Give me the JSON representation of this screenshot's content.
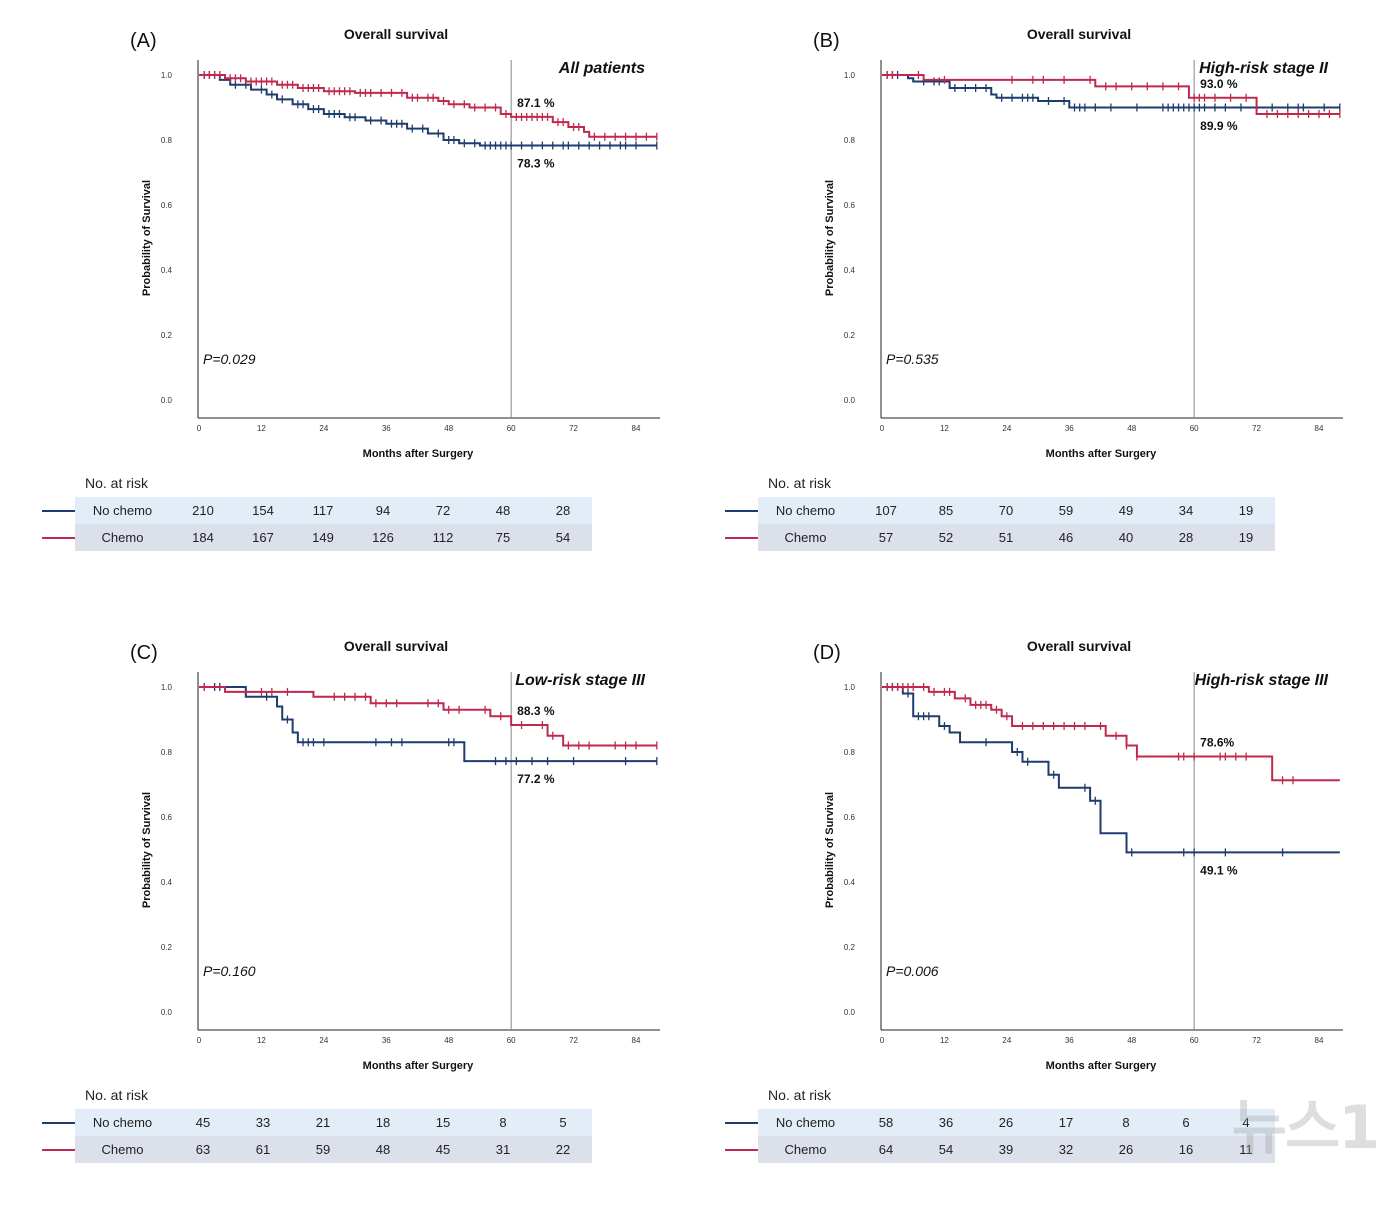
{
  "colors": {
    "no_chemo": "#1f3c6e",
    "chemo": "#c0284e",
    "ref_line": "#888888"
  },
  "chart_data": [
    {
      "type": "line",
      "panel_label": "(A)",
      "title": "Overall survival",
      "subtitle": "All patients",
      "xlabel": "Months after Surgery",
      "ylabel": "Probability of Survival",
      "xlim": [
        0,
        88
      ],
      "ylim": [
        0,
        1.0
      ],
      "xticks": [
        "0",
        "12",
        "24",
        "36",
        "48",
        "60",
        "72",
        "84"
      ],
      "yticks": [
        "0.0",
        "0.2",
        "0.4",
        "0.6",
        "0.8",
        "1.0"
      ],
      "ref_line_x": 60,
      "p_value": "P=0.029",
      "annotations": [
        {
          "text": "87.1 %",
          "x": 60,
          "y": 0.871,
          "pos": "above"
        },
        {
          "text": "78.3 %",
          "x": 60,
          "y": 0.783,
          "pos": "below"
        }
      ],
      "series": [
        {
          "name": "No chemo",
          "steps": [
            [
              0,
              1.0
            ],
            [
              4,
              0.985
            ],
            [
              6,
              0.97
            ],
            [
              10,
              0.955
            ],
            [
              13,
              0.94
            ],
            [
              15,
              0.925
            ],
            [
              18,
              0.91
            ],
            [
              21,
              0.895
            ],
            [
              24,
              0.88
            ],
            [
              28,
              0.87
            ],
            [
              32,
              0.86
            ],
            [
              36,
              0.85
            ],
            [
              40,
              0.835
            ],
            [
              44,
              0.82
            ],
            [
              47,
              0.8
            ],
            [
              50,
              0.79
            ],
            [
              54,
              0.783
            ],
            [
              88,
              0.783
            ]
          ],
          "censor": [
            1,
            2,
            3,
            7,
            9,
            12,
            14,
            16,
            19,
            20,
            22,
            23,
            25,
            26,
            27,
            29,
            30,
            33,
            35,
            37,
            38,
            39,
            41,
            43,
            46,
            48,
            49,
            51,
            53,
            55,
            56,
            57,
            58,
            59,
            60,
            62,
            64,
            66,
            68,
            70,
            71,
            73,
            75,
            77,
            79,
            81,
            82,
            84,
            88
          ]
        },
        {
          "name": "Chemo",
          "steps": [
            [
              0,
              1.0
            ],
            [
              5,
              0.99
            ],
            [
              9,
              0.98
            ],
            [
              15,
              0.97
            ],
            [
              19,
              0.96
            ],
            [
              24,
              0.95
            ],
            [
              30,
              0.945
            ],
            [
              40,
              0.93
            ],
            [
              46,
              0.92
            ],
            [
              48,
              0.91
            ],
            [
              52,
              0.9
            ],
            [
              58,
              0.88
            ],
            [
              60,
              0.871
            ],
            [
              68,
              0.855
            ],
            [
              71,
              0.84
            ],
            [
              74,
              0.825
            ],
            [
              75,
              0.81
            ],
            [
              88,
              0.81
            ]
          ],
          "censor": [
            1,
            2,
            3,
            4,
            6,
            7,
            8,
            10,
            11,
            12,
            13,
            14,
            16,
            17,
            18,
            20,
            21,
            22,
            23,
            25,
            26,
            27,
            28,
            29,
            31,
            32,
            33,
            35,
            37,
            39,
            41,
            42,
            44,
            45,
            47,
            49,
            51,
            53,
            55,
            57,
            59,
            61,
            62,
            63,
            64,
            65,
            66,
            67,
            69,
            70,
            72,
            73,
            76,
            78,
            80,
            82,
            84,
            86,
            88
          ]
        }
      ]
    },
    {
      "type": "line",
      "panel_label": "(B)",
      "title": "Overall survival",
      "subtitle": "High-risk stage II",
      "xlabel": "Months after Surgery",
      "ylabel": "Probability of Survival",
      "xlim": [
        0,
        88
      ],
      "ylim": [
        0,
        1.0
      ],
      "xticks": [
        "0",
        "12",
        "24",
        "36",
        "48",
        "60",
        "72",
        "84"
      ],
      "yticks": [
        "0.0",
        "0.2",
        "0.4",
        "0.6",
        "0.8",
        "1.0"
      ],
      "ref_line_x": 60,
      "p_value": "P=0.535",
      "annotations": [
        {
          "text": "93.0 %",
          "x": 60,
          "y": 0.93,
          "pos": "above"
        },
        {
          "text": "89.9 %",
          "x": 60,
          "y": 0.899,
          "pos": "below"
        }
      ],
      "series": [
        {
          "name": "No chemo",
          "steps": [
            [
              0,
              1.0
            ],
            [
              5,
              0.99
            ],
            [
              6,
              0.98
            ],
            [
              13,
              0.96
            ],
            [
              21,
              0.94
            ],
            [
              22,
              0.93
            ],
            [
              30,
              0.92
            ],
            [
              36,
              0.9
            ],
            [
              88,
              0.9
            ]
          ],
          "censor": [
            1,
            2,
            3,
            8,
            10,
            11,
            14,
            16,
            18,
            20,
            23,
            25,
            27,
            28,
            29,
            32,
            35,
            37,
            38,
            39,
            41,
            44,
            49,
            54,
            55,
            56,
            57,
            58,
            59,
            60,
            61,
            62,
            64,
            66,
            69,
            72,
            75,
            78,
            80,
            81,
            85,
            88
          ]
        },
        {
          "name": "Chemo",
          "steps": [
            [
              0,
              1.0
            ],
            [
              8,
              0.985
            ],
            [
              41,
              0.965
            ],
            [
              59,
              0.93
            ],
            [
              72,
              0.88
            ],
            [
              88,
              0.88
            ]
          ],
          "censor": [
            1,
            2,
            7,
            12,
            25,
            29,
            31,
            35,
            40,
            43,
            45,
            48,
            51,
            54,
            57,
            60,
            61,
            62,
            64,
            67,
            70,
            74,
            76,
            78,
            80,
            82,
            84,
            86,
            88
          ]
        }
      ]
    },
    {
      "type": "line",
      "panel_label": "(C)",
      "title": "Overall survival",
      "subtitle": "Low-risk stage III",
      "xlabel": "Months after Surgery",
      "ylabel": "Probability of Survival",
      "xlim": [
        0,
        88
      ],
      "ylim": [
        0,
        1.0
      ],
      "xticks": [
        "0",
        "12",
        "24",
        "36",
        "48",
        "60",
        "72",
        "84"
      ],
      "yticks": [
        "0.0",
        "0.2",
        "0.4",
        "0.6",
        "0.8",
        "1.0"
      ],
      "ref_line_x": 60,
      "p_value": "P=0.160",
      "annotations": [
        {
          "text": "88.3 %",
          "x": 60,
          "y": 0.883,
          "pos": "above"
        },
        {
          "text": "77.2 %",
          "x": 60,
          "y": 0.772,
          "pos": "below"
        }
      ],
      "series": [
        {
          "name": "No chemo",
          "steps": [
            [
              0,
              1.0
            ],
            [
              9,
              0.97
            ],
            [
              15,
              0.94
            ],
            [
              16,
              0.9
            ],
            [
              18,
              0.86
            ],
            [
              19,
              0.83
            ],
            [
              51,
              0.772
            ],
            [
              88,
              0.772
            ]
          ],
          "censor": [
            1,
            3,
            4,
            13,
            17,
            20,
            21,
            22,
            24,
            34,
            37,
            39,
            48,
            49,
            57,
            59,
            61,
            64,
            67,
            72,
            82,
            88
          ]
        },
        {
          "name": "Chemo",
          "steps": [
            [
              0,
              1.0
            ],
            [
              5,
              0.985
            ],
            [
              22,
              0.97
            ],
            [
              33,
              0.95
            ],
            [
              47,
              0.93
            ],
            [
              56,
              0.91
            ],
            [
              60,
              0.883
            ],
            [
              67,
              0.85
            ],
            [
              70,
              0.82
            ],
            [
              88,
              0.82
            ]
          ],
          "censor": [
            1,
            12,
            14,
            17,
            26,
            28,
            30,
            32,
            34,
            36,
            38,
            44,
            46,
            48,
            50,
            55,
            58,
            62,
            66,
            68,
            71,
            73,
            75,
            80,
            82,
            84,
            88
          ]
        }
      ]
    },
    {
      "type": "line",
      "panel_label": "(D)",
      "title": "Overall survival",
      "subtitle": "High-risk stage III",
      "xlabel": "Months after Surgery",
      "ylabel": "Probability of Survival",
      "xlim": [
        0,
        88
      ],
      "ylim": [
        0,
        1.0
      ],
      "xticks": [
        "0",
        "12",
        "24",
        "36",
        "48",
        "60",
        "72",
        "84"
      ],
      "yticks": [
        "0.0",
        "0.2",
        "0.4",
        "0.6",
        "0.8",
        "1.0"
      ],
      "ref_line_x": 60,
      "p_value": "P=0.006",
      "annotations": [
        {
          "text": "78.6%",
          "x": 60,
          "y": 0.786,
          "pos": "above"
        },
        {
          "text": "49.1 %",
          "x": 60,
          "y": 0.491,
          "pos": "below"
        }
      ],
      "series": [
        {
          "name": "No chemo",
          "steps": [
            [
              0,
              1.0
            ],
            [
              4,
              0.98
            ],
            [
              6,
              0.91
            ],
            [
              11,
              0.88
            ],
            [
              13,
              0.86
            ],
            [
              15,
              0.83
            ],
            [
              25,
              0.8
            ],
            [
              27,
              0.77
            ],
            [
              32,
              0.73
            ],
            [
              34,
              0.69
            ],
            [
              40,
              0.65
            ],
            [
              42,
              0.55
            ],
            [
              47,
              0.491
            ],
            [
              88,
              0.491
            ]
          ],
          "censor": [
            1,
            2,
            3,
            5,
            7,
            8,
            9,
            12,
            20,
            26,
            28,
            33,
            39,
            41,
            48,
            58,
            60,
            66,
            77
          ]
        },
        {
          "name": "Chemo",
          "steps": [
            [
              0,
              1.0
            ],
            [
              9,
              0.985
            ],
            [
              14,
              0.965
            ],
            [
              17,
              0.945
            ],
            [
              21,
              0.93
            ],
            [
              23,
              0.91
            ],
            [
              25,
              0.88
            ],
            [
              43,
              0.85
            ],
            [
              47,
              0.82
            ],
            [
              49,
              0.786
            ],
            [
              75,
              0.713
            ],
            [
              88,
              0.713
            ]
          ],
          "censor": [
            1,
            2,
            3,
            4,
            5,
            6,
            8,
            10,
            12,
            13,
            16,
            18,
            19,
            20,
            22,
            24,
            27,
            29,
            31,
            33,
            35,
            37,
            39,
            42,
            45,
            47,
            49,
            57,
            58,
            60,
            65,
            66,
            68,
            70,
            77,
            79
          ]
        }
      ]
    }
  ],
  "risk_tables": [
    {
      "title": "No. at risk",
      "rows": [
        {
          "name": "No chemo",
          "values": [
            "210",
            "154",
            "117",
            "94",
            "72",
            "48",
            "28"
          ]
        },
        {
          "name": "Chemo",
          "values": [
            "184",
            "167",
            "149",
            "126",
            "112",
            "75",
            "54"
          ]
        }
      ]
    },
    {
      "title": "No. at risk",
      "rows": [
        {
          "name": "No chemo",
          "values": [
            "107",
            "85",
            "70",
            "59",
            "49",
            "34",
            "19"
          ]
        },
        {
          "name": "Chemo",
          "values": [
            "57",
            "52",
            "51",
            "46",
            "40",
            "28",
            "19"
          ]
        }
      ]
    },
    {
      "title": "No. at risk",
      "rows": [
        {
          "name": "No chemo",
          "values": [
            "45",
            "33",
            "21",
            "18",
            "15",
            "8",
            "5"
          ]
        },
        {
          "name": "Chemo",
          "values": [
            "63",
            "61",
            "59",
            "48",
            "45",
            "31",
            "22"
          ]
        }
      ]
    },
    {
      "title": "No. at risk",
      "rows": [
        {
          "name": "No chemo",
          "values": [
            "58",
            "36",
            "26",
            "17",
            "8",
            "6",
            "4"
          ]
        },
        {
          "name": "Chemo",
          "values": [
            "64",
            "54",
            "39",
            "32",
            "26",
            "16",
            "11"
          ]
        }
      ]
    }
  ],
  "watermark": "뉴스1"
}
